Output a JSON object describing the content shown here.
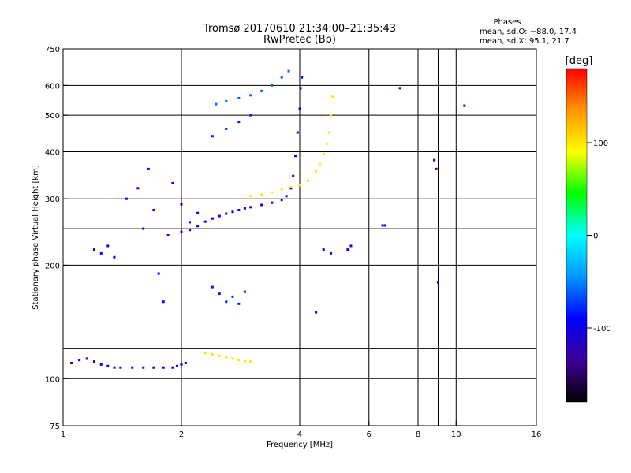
{
  "chart_data": {
    "type": "scatter",
    "title": "Tromsø 20170610 21:34:00–21:35:43",
    "subtitle": "RwPretec (Bp)",
    "xlabel": "Frequency [MHz]",
    "ylabel": "Stationary phase Virtual Height [km]",
    "x_scale": "log",
    "y_scale": "log",
    "xlim": [
      1,
      16
    ],
    "ylim": [
      75,
      750
    ],
    "x_ticks": [
      1,
      2,
      4,
      6,
      8,
      10,
      16
    ],
    "y_ticks": [
      75,
      100,
      200,
      300,
      400,
      500,
      600,
      750
    ],
    "x_grid": [
      2,
      4,
      6,
      8,
      9,
      10
    ],
    "y_grid": [
      100,
      120,
      200,
      250,
      300,
      400,
      500,
      600
    ],
    "grid": true,
    "info": {
      "heading": "Phases",
      "line_o": "mean, sd,O: −88.0, 17.4",
      "line_x": "mean, sd,X:  95.1, 21.7"
    },
    "colorbar": {
      "label": "[deg]",
      "range": [
        -180,
        180
      ],
      "ticks": [
        100,
        0,
        -100
      ],
      "colors": [
        "#000000",
        "#3c0096",
        "#0000ff",
        "#0096ff",
        "#00ffff",
        "#00ff00",
        "#ffff00",
        "#ff9600",
        "#ff0000"
      ]
    },
    "series": [
      {
        "trace": "o-mode-E-layer",
        "phase": -100,
        "x": [
          1.05,
          1.1,
          1.15,
          1.2,
          1.25,
          1.3,
          1.35,
          1.4,
          1.5,
          1.6,
          1.7,
          1.8,
          1.9,
          1.95,
          2.0,
          2.05
        ],
        "y": [
          110,
          112,
          113,
          111,
          109,
          108,
          107,
          107,
          107,
          107,
          107,
          107,
          107,
          108,
          109,
          110
        ]
      },
      {
        "trace": "o-mode-F-layer",
        "phase": -100,
        "x": [
          2.0,
          2.1,
          2.2,
          2.3,
          2.4,
          2.5,
          2.6,
          2.7,
          2.8,
          2.9,
          3.0,
          3.2,
          3.4,
          3.6,
          3.7,
          3.8,
          3.85,
          3.9,
          3.95,
          4.0,
          4.02,
          4.05
        ],
        "y": [
          245,
          248,
          254,
          261,
          266,
          270,
          274,
          277,
          280,
          283,
          285,
          289,
          293,
          298,
          305,
          320,
          345,
          390,
          450,
          520,
          590,
          630
        ]
      },
      {
        "trace": "x-mode-F-layer",
        "phase": 100,
        "x": [
          3.0,
          3.2,
          3.4,
          3.6,
          3.8,
          4.0,
          4.2,
          4.4,
          4.5,
          4.6,
          4.7,
          4.75,
          4.8,
          4.85
        ],
        "y": [
          305,
          308,
          312,
          318,
          322,
          326,
          335,
          355,
          370,
          395,
          420,
          450,
          500,
          560
        ]
      },
      {
        "trace": "x-mode-E-layer",
        "phase": 100,
        "x": [
          2.3,
          2.4,
          2.5,
          2.6,
          2.7,
          2.8,
          2.9,
          3.0
        ],
        "y": [
          117,
          116,
          115,
          114,
          113,
          112,
          111,
          111
        ]
      },
      {
        "trace": "oblique-upper",
        "phase": -60,
        "x": [
          2.45,
          2.6,
          2.8,
          3.0,
          3.2,
          3.4,
          3.6,
          3.75
        ],
        "y": [
          535,
          545,
          555,
          565,
          580,
          600,
          630,
          655
        ]
      },
      {
        "trace": "oblique-middle",
        "phase": -80,
        "x": [
          2.4,
          2.6,
          2.8,
          3.0
        ],
        "y": [
          440,
          460,
          480,
          500
        ]
      },
      {
        "trace": "low-frequency-spread",
        "phase": -90,
        "x": [
          1.2,
          1.25,
          1.3,
          1.35,
          1.45,
          1.55,
          1.6,
          1.65,
          1.7,
          1.75,
          1.8,
          1.85,
          1.9,
          2.0,
          2.1,
          2.2
        ],
        "y": [
          220,
          215,
          225,
          210,
          300,
          320,
          250,
          360,
          280,
          190,
          160,
          240,
          330,
          290,
          260,
          275
        ]
      },
      {
        "trace": "mid-patch",
        "phase": -80,
        "x": [
          2.4,
          2.5,
          2.6,
          2.7,
          2.8,
          2.9
        ],
        "y": [
          175,
          168,
          160,
          165,
          158,
          170
        ]
      },
      {
        "trace": "isolated-returns",
        "phase": -100,
        "x": [
          6.5,
          6.6,
          8.8,
          8.9,
          9.0,
          5.3,
          5.4,
          4.4,
          4.6,
          4.8,
          10.5,
          7.2
        ],
        "y": [
          255,
          255,
          380,
          360,
          180,
          220,
          225,
          150,
          220,
          215,
          530,
          590
        ]
      }
    ]
  }
}
